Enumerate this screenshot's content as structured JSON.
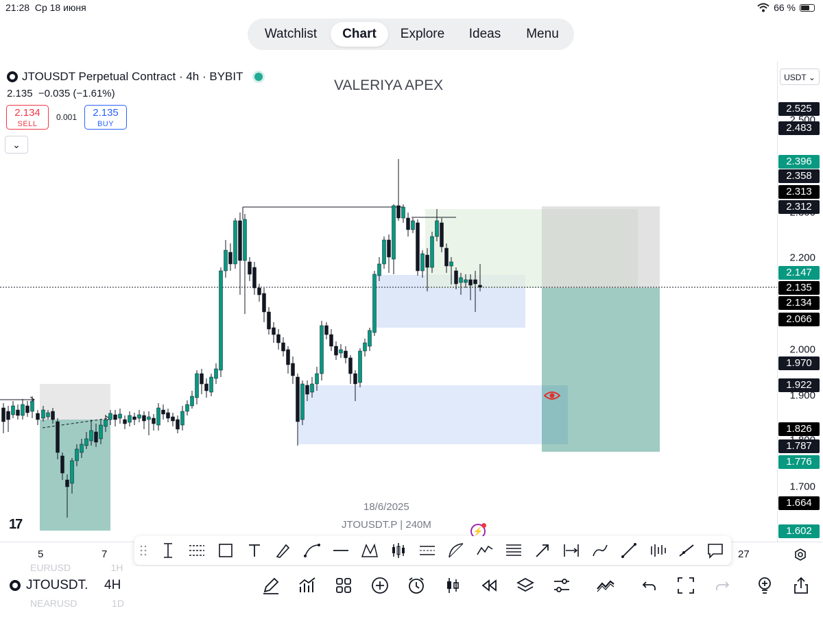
{
  "status_bar": {
    "time": "21:28",
    "date": "Ср 18 июня",
    "battery": "66 %",
    "battery_level": 0.66
  },
  "nav": {
    "tabs": [
      "Watchlist",
      "Chart",
      "Explore",
      "Ideas",
      "Menu"
    ],
    "active": "Chart"
  },
  "symbol": {
    "title": "JTOUSDT Perpetual Contract · 4h · BYBIT",
    "quote": "2.135",
    "change": "−0.035 (−1.61%)",
    "sell_price": "2.134",
    "sell_label": "SELL",
    "spread": "0.001",
    "buy_price": "2.135",
    "buy_label": "BUY",
    "collapse_glyph": "⌄"
  },
  "watermark": "VALERIYA APEX",
  "chart_footer": {
    "date": "18/6/2025",
    "symbol_note": "JTOUSDT.P | 240M"
  },
  "tv_logo": "17",
  "price_scale": {
    "currency": "USDT ⌄",
    "ticks": [
      "2.500",
      "2.300",
      "2.200",
      "2.000",
      "1.900",
      "1.800",
      "1.700"
    ],
    "labels": [
      {
        "text": "2.525",
        "color": "#131722"
      },
      {
        "text": "2.483",
        "color": "#131722"
      },
      {
        "text": "2.396",
        "color": "#089981"
      },
      {
        "text": "2.358",
        "color": "#131722"
      },
      {
        "text": "2.313",
        "color": "#000000"
      },
      {
        "text": "2.312",
        "color": "#131722"
      },
      {
        "text": "2.147",
        "color": "#089981"
      },
      {
        "text": "2.135",
        "color": "#000000"
      },
      {
        "text": "2.134",
        "color": "#000000"
      },
      {
        "text": "2.066",
        "color": "#000000"
      },
      {
        "text": "1.970",
        "color": "#131722"
      },
      {
        "text": "1.922",
        "color": "#131722"
      },
      {
        "text": "1.826",
        "color": "#000000"
      },
      {
        "text": "1.787",
        "color": "#131722"
      },
      {
        "text": "1.776",
        "color": "#089981"
      },
      {
        "text": "1.664",
        "color": "#000000"
      },
      {
        "text": "1.602",
        "color": "#089981"
      }
    ]
  },
  "time_axis": {
    "ticks": [
      "5",
      "7",
      "27"
    ]
  },
  "bottom_bar": {
    "symbol": "JTOUSDT.",
    "interval": "4H",
    "ghost_rows": [
      {
        "symbol": "EURUSD",
        "interval": "1H"
      },
      {
        "symbol": "NEARUSD",
        "interval": "1D"
      }
    ]
  },
  "draw_tools": [
    "cursor-line-icon",
    "fib-retracement-icon",
    "rectangle-icon",
    "text-icon",
    "brush-icon",
    "path-icon",
    "horizontal-line-icon",
    "xabcd-pattern-icon",
    "long-position-icon",
    "parallel-channel-icon",
    "arc-icon",
    "elliott-wave-icon",
    "fib-levels-icon",
    "arrow-icon",
    "date-range-icon",
    "curve-icon",
    "trend-line-icon",
    "projection-icon",
    "ray-icon",
    "comment-icon"
  ],
  "bottom_tools": [
    "pencil-icon",
    "indicators-icon",
    "layouts-icon",
    "add-icon",
    "alert-icon",
    "candles-icon",
    "replay-icon",
    "layers-icon",
    "settings-sliders-icon",
    "chart-type-icon",
    "undo-icon",
    "fullscreen-icon",
    "redo-icon",
    "ideas-bulb-icon",
    "share-icon"
  ],
  "colors": {
    "up": "#089981",
    "down": "#131722",
    "buy": "#2962ff",
    "sell": "#f23645",
    "zone_green": "#2a8c7a",
    "zone_blue": "#c9d8f5"
  }
}
